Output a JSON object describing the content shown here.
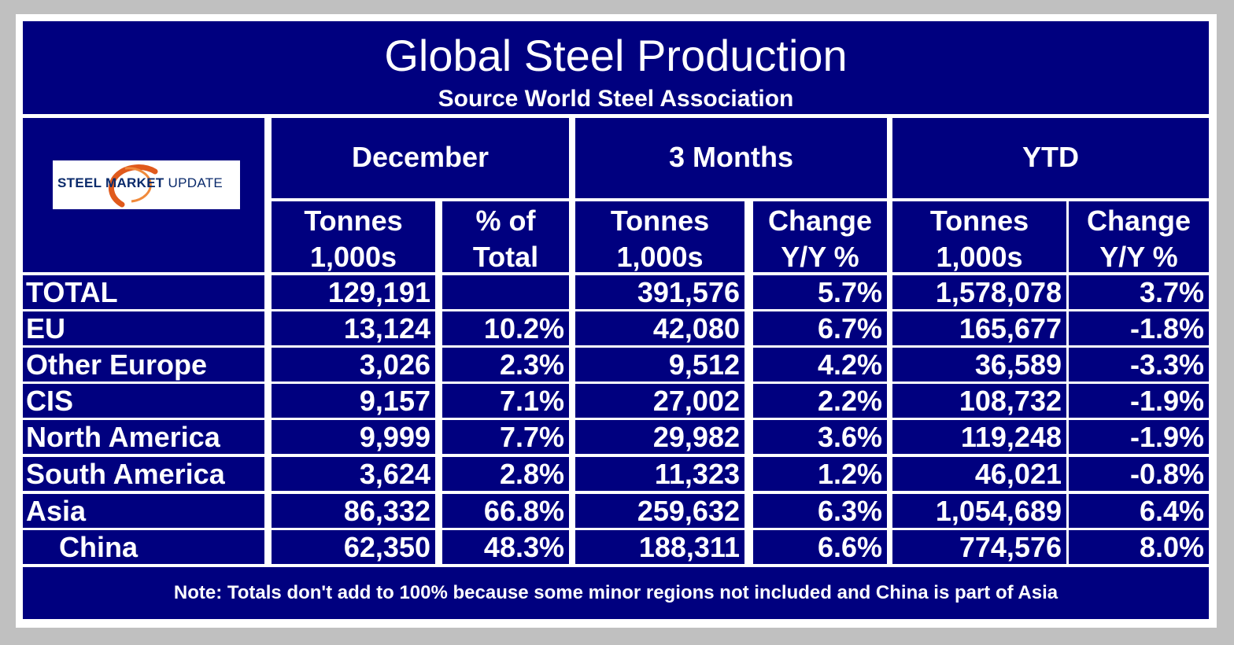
{
  "chart_data": {
    "type": "table",
    "title": "Global Steel Production",
    "subtitle": "Source World Steel Association",
    "logo_text": "STEEL MARKET UPDATE",
    "group_headers": [
      "December",
      "3 Months",
      "YTD"
    ],
    "column_headers": [
      [
        "Tonnes",
        "1,000s"
      ],
      [
        "% of",
        "Total"
      ],
      [
        "Tonnes",
        "1,000s"
      ],
      [
        "Change",
        "Y/Y %"
      ],
      [
        "Tonnes",
        "1,000s"
      ],
      [
        "Change",
        "Y/Y %"
      ]
    ],
    "rows": [
      {
        "region": "TOTAL",
        "values": [
          "129,191",
          "",
          "391,576",
          "5.7%",
          "1,578,078",
          "3.7%"
        ]
      },
      {
        "region": "EU",
        "values": [
          "13,124",
          "10.2%",
          "42,080",
          "6.7%",
          "165,677",
          "-1.8%"
        ]
      },
      {
        "region": "Other Europe",
        "values": [
          "3,026",
          "2.3%",
          "9,512",
          "4.2%",
          "36,589",
          "-3.3%"
        ]
      },
      {
        "region": "CIS",
        "values": [
          "9,157",
          "7.1%",
          "27,002",
          "2.2%",
          "108,732",
          "-1.9%"
        ]
      },
      {
        "region": "North America",
        "values": [
          "9,999",
          "7.7%",
          "29,982",
          "3.6%",
          "119,248",
          "-1.9%"
        ]
      },
      {
        "region": "South America",
        "values": [
          "3,624",
          "2.8%",
          "11,323",
          "1.2%",
          "46,021",
          "-0.8%"
        ]
      },
      {
        "region": "Asia",
        "values": [
          "86,332",
          "66.8%",
          "259,632",
          "6.3%",
          "1,054,689",
          "6.4%"
        ]
      },
      {
        "region": "China",
        "values": [
          "62,350",
          "48.3%",
          "188,311",
          "6.6%",
          "774,576",
          "8.0%"
        ]
      }
    ],
    "note": "Note: Totals don't add to 100% because some minor  regions not included and China is part of Asia"
  },
  "colors": {
    "cell_background": "#00007f",
    "grid_lines": "#ffffff",
    "text": "#ffffff",
    "outer_background": "#c0c0c0",
    "logo_arc": "#e05a1c"
  }
}
